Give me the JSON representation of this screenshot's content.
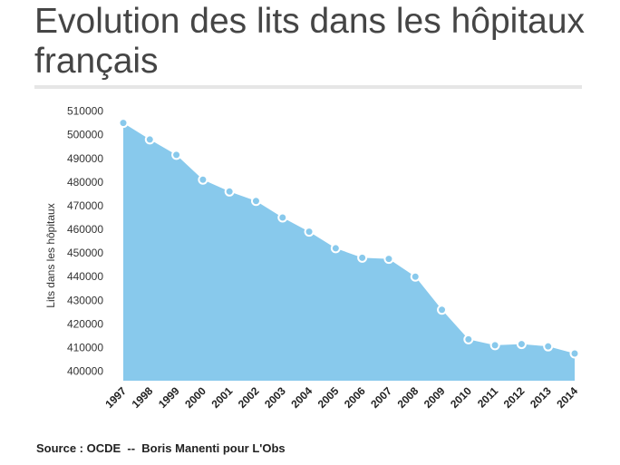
{
  "title": "Evolution des lits dans les hôpitaux français",
  "source": "Source : OCDE  --  Boris Manenti pour L'Obs",
  "colors": {
    "area_fill": "#88c9ec",
    "marker_fill": "#88c9ec",
    "marker_stroke": "#ffffff",
    "title_rule": "#e6e6e6"
  },
  "chart_data": {
    "type": "area",
    "title": "Evolution des lits dans les hôpitaux français",
    "xlabel": "",
    "ylabel": "Lits dans les hôpitaux",
    "x": [
      "1997",
      "1998",
      "1999",
      "2000",
      "2001",
      "2002",
      "2003",
      "2004",
      "2005",
      "2006",
      "2007",
      "2008",
      "2009",
      "2010",
      "2011",
      "2012",
      "2013",
      "2014"
    ],
    "series": [
      {
        "values": [
          505000,
          498000,
          491500,
          481000,
          476000,
          472000,
          465000,
          459000,
          452000,
          448000,
          447500,
          440000,
          426000,
          413500,
          411000,
          411500,
          410500,
          407500
        ]
      }
    ],
    "y_ticks": [
      "400000",
      "410000",
      "420000",
      "430000",
      "440000",
      "450000",
      "460000",
      "470000",
      "480000",
      "490000",
      "500000",
      "510000"
    ],
    "ylim": [
      396000,
      511000
    ],
    "grid": false,
    "legend": "none",
    "markers": true
  }
}
